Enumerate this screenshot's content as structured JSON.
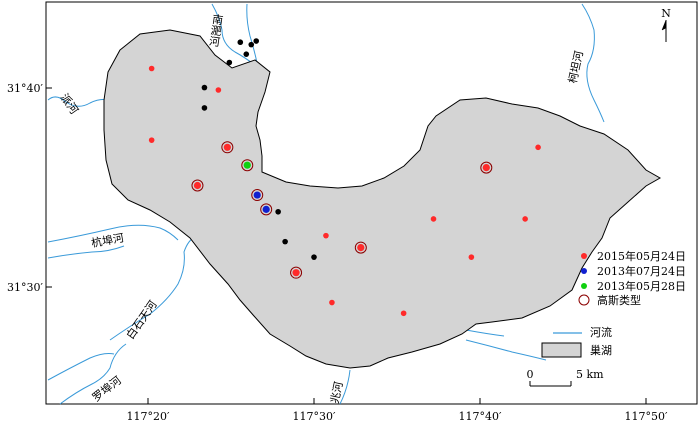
{
  "map": {
    "north_label": "N",
    "colors": {
      "lake_fill": "#d4d4d4",
      "river": "#3a9ad9",
      "red": "#ff2a2a",
      "blue": "#1020d0",
      "green": "#10d010",
      "black": "#000000",
      "gauss_ring": "#8b0000"
    },
    "x_ticks": [
      {
        "label": "117°20′"
      },
      {
        "label": "117°30′"
      },
      {
        "label": "117°40′"
      },
      {
        "label": "117°50′"
      }
    ],
    "y_ticks": [
      {
        "label": "31°40′"
      },
      {
        "label": "31°30′"
      }
    ],
    "rivers": [
      {
        "name": "南淝河"
      },
      {
        "name": "派河"
      },
      {
        "name": "杭埠河"
      },
      {
        "name": "白石天河"
      },
      {
        "name": "罗埠河"
      },
      {
        "name": "兆河"
      },
      {
        "name": "柯坦河"
      }
    ],
    "legend": {
      "items": [
        {
          "label": "2015年05月24日",
          "symbol": "red-dot"
        },
        {
          "label": "2013年07月24日",
          "symbol": "blue-dot"
        },
        {
          "label": "2013年05月28日",
          "symbol": "green-dot"
        },
        {
          "label": "高斯类型",
          "symbol": "ring"
        },
        {
          "label": "河流",
          "symbol": "river-line"
        },
        {
          "label": "巢湖",
          "symbol": "lake-box"
        }
      ]
    },
    "scale_bar": {
      "zero_label": "0",
      "end_label": "5 km"
    },
    "sample_points": [
      {
        "date": "2015-05-24",
        "lon": 117.337,
        "lat": 31.683,
        "gauss": false
      },
      {
        "date": "2015-05-24",
        "lon": 117.404,
        "lat": 31.665,
        "gauss": false
      },
      {
        "date": "2015-05-24",
        "lon": 117.337,
        "lat": 31.623,
        "gauss": false
      },
      {
        "date": "2015-05-24",
        "lon": 117.413,
        "lat": 31.617,
        "gauss": true
      },
      {
        "date": "2015-05-24",
        "lon": 117.383,
        "lat": 31.585,
        "gauss": true
      },
      {
        "date": "2015-05-24",
        "lon": 117.512,
        "lat": 31.543,
        "gauss": false
      },
      {
        "date": "2015-05-24",
        "lon": 117.547,
        "lat": 31.533,
        "gauss": true
      },
      {
        "date": "2015-05-24",
        "lon": 117.482,
        "lat": 31.512,
        "gauss": true
      },
      {
        "date": "2015-05-24",
        "lon": 117.518,
        "lat": 31.487,
        "gauss": false
      },
      {
        "date": "2015-05-24",
        "lon": 117.59,
        "lat": 31.478,
        "gauss": false
      },
      {
        "date": "2015-05-24",
        "lon": 117.673,
        "lat": 31.6,
        "gauss": true
      },
      {
        "date": "2015-05-24",
        "lon": 117.725,
        "lat": 31.617,
        "gauss": false
      },
      {
        "date": "2015-05-24",
        "lon": 117.62,
        "lat": 31.557,
        "gauss": false
      },
      {
        "date": "2015-05-24",
        "lon": 117.712,
        "lat": 31.557,
        "gauss": false
      },
      {
        "date": "2015-05-24",
        "lon": 117.658,
        "lat": 31.525,
        "gauss": false
      },
      {
        "date": "2013-07-24",
        "lon": 117.443,
        "lat": 31.577,
        "gauss": true
      },
      {
        "date": "2013-07-24",
        "lon": 117.452,
        "lat": 31.565,
        "gauss": true
      },
      {
        "date": "2013-05-28",
        "lon": 117.433,
        "lat": 31.602,
        "gauss": true
      },
      {
        "date": "black",
        "lon": 117.415,
        "lat": 31.688,
        "gauss": false
      },
      {
        "date": "black",
        "lon": 117.432,
        "lat": 31.695,
        "gauss": false
      },
      {
        "date": "black",
        "lon": 117.426,
        "lat": 31.705,
        "gauss": false
      },
      {
        "date": "black",
        "lon": 117.437,
        "lat": 31.703,
        "gauss": false
      },
      {
        "date": "black",
        "lon": 117.442,
        "lat": 31.706,
        "gauss": false
      },
      {
        "date": "black",
        "lon": 117.39,
        "lat": 31.667,
        "gauss": false
      },
      {
        "date": "black",
        "lon": 117.39,
        "lat": 31.65,
        "gauss": false
      },
      {
        "date": "black",
        "lon": 117.464,
        "lat": 31.563,
        "gauss": false
      },
      {
        "date": "black",
        "lon": 117.471,
        "lat": 31.538,
        "gauss": false
      },
      {
        "date": "black",
        "lon": 117.5,
        "lat": 31.525,
        "gauss": false
      }
    ]
  }
}
